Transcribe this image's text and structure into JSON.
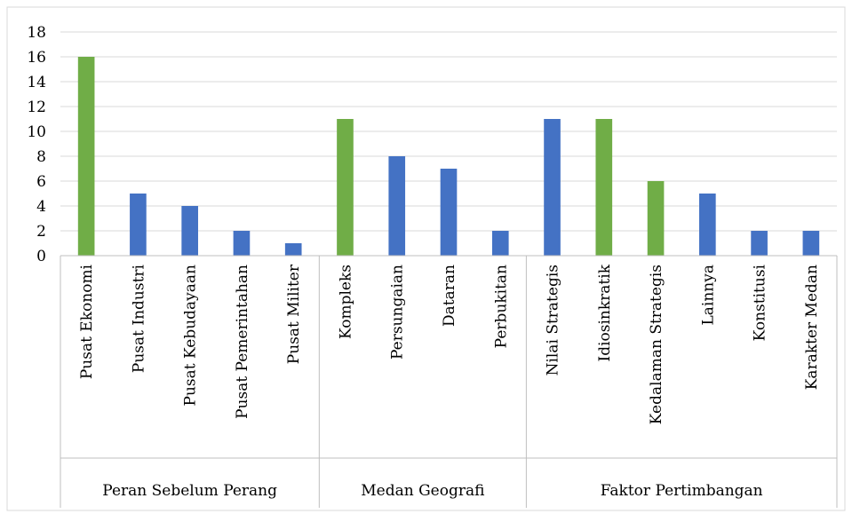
{
  "colors": {
    "highlight": "#70ad47",
    "default": "#4472c4",
    "grid": "#d9d9d9",
    "frame": "#d9d9d9",
    "axis": "#bfbfbf"
  },
  "chart_data": {
    "type": "bar",
    "title": "",
    "xlabel": "",
    "ylabel": "",
    "ylim": [
      0,
      18
    ],
    "ytick_step": 2,
    "yticks": [
      "0",
      "2",
      "4",
      "6",
      "8",
      "10",
      "12",
      "14",
      "16",
      "18"
    ],
    "grid": true,
    "legend": "none",
    "groups": [
      {
        "label": "Peran Sebelum Perang",
        "categories": [
          "Pusat Ekonomi",
          "Pusat Industri",
          "Pusat Kebudayaan",
          "Pusat Pemerintahan",
          "Pusat Militer"
        ],
        "values": [
          16,
          5,
          4,
          2,
          1
        ],
        "highlight": [
          true,
          false,
          false,
          false,
          false
        ]
      },
      {
        "label": "Medan Geografi",
        "categories": [
          "Kompleks",
          "Persungaian",
          "Dataran",
          "Perbukitan"
        ],
        "values": [
          11,
          8,
          7,
          2
        ],
        "highlight": [
          true,
          false,
          false,
          false
        ]
      },
      {
        "label": "Faktor Pertimbangan",
        "categories": [
          "Nilai Strategis",
          "Idiosinkratik",
          "Kedalaman Strategis",
          "Lainnya",
          "Konstitusi",
          "Karakter Medan"
        ],
        "values": [
          11,
          11,
          6,
          5,
          2,
          2
        ],
        "highlight": [
          false,
          true,
          true,
          false,
          false,
          false
        ]
      }
    ]
  }
}
